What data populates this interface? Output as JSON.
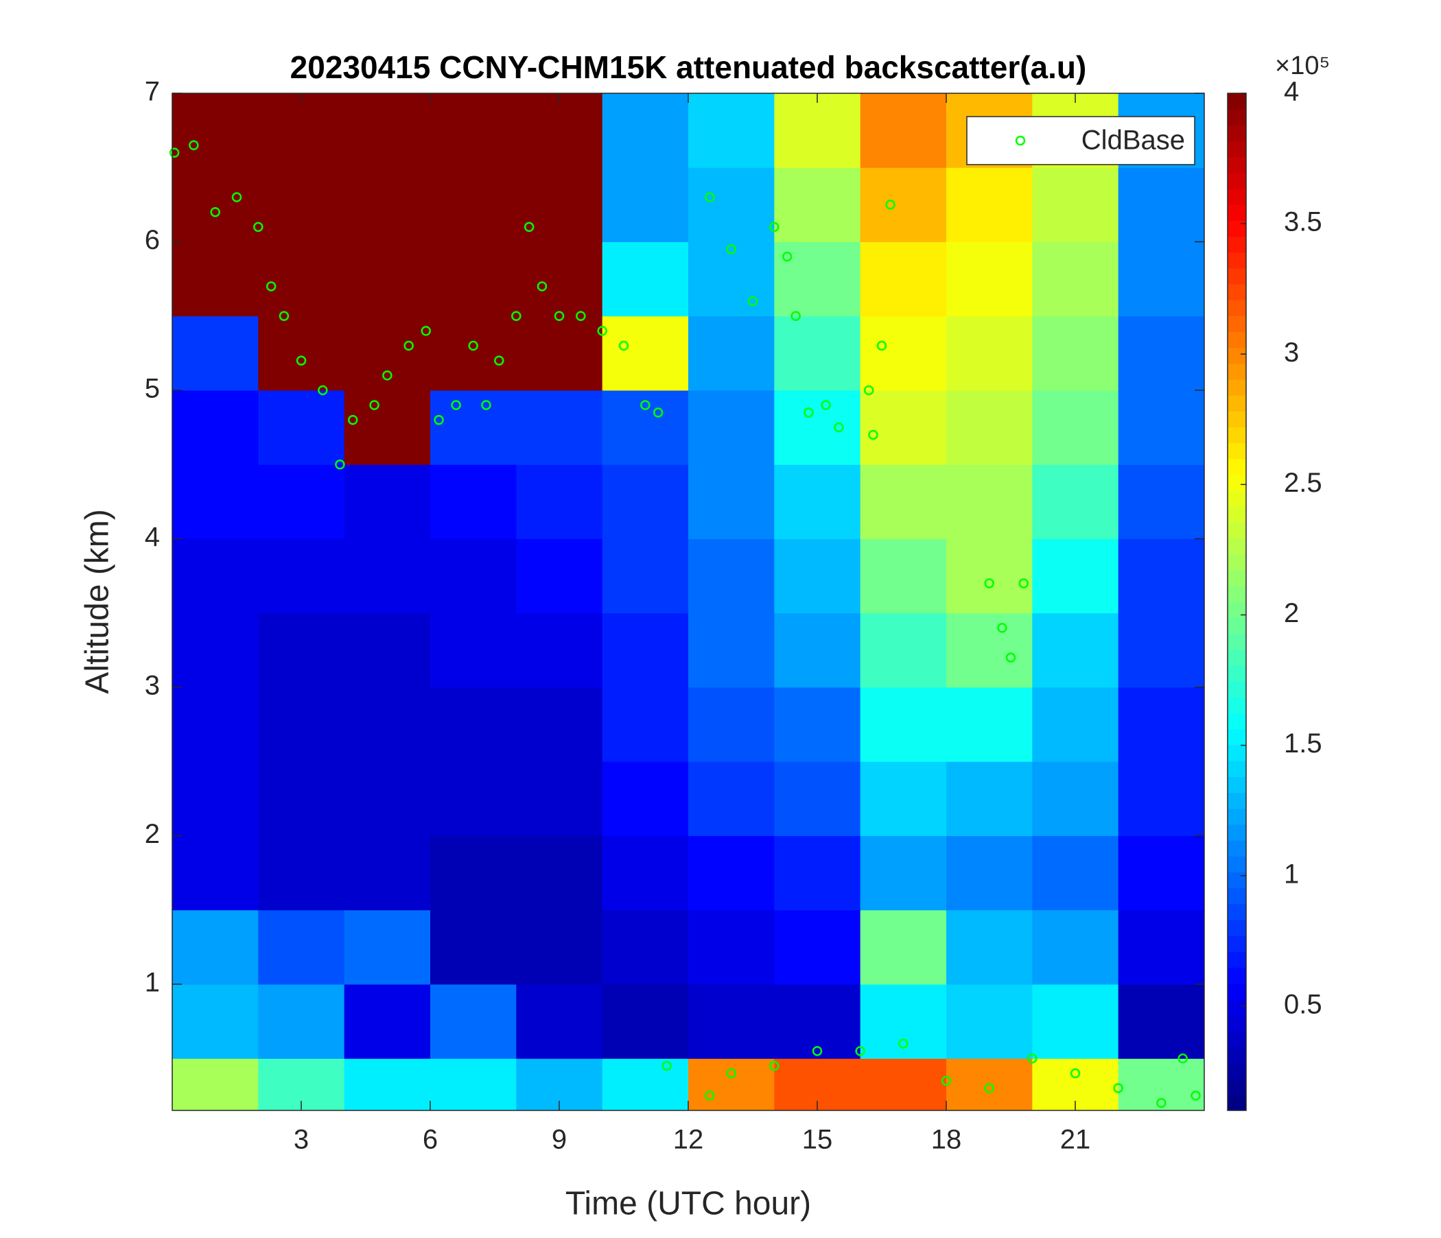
{
  "chart_data": {
    "type": "heatmap",
    "title": "20230415 CCNY-CHM15K attenuated backscatter(a.u)",
    "x_label": "Time (UTC hour)",
    "y_label": "Altitude (km)",
    "xlim": [
      0,
      24
    ],
    "xticks": [
      3,
      6,
      9,
      12,
      15,
      18,
      21
    ],
    "ylim": [
      0.15,
      7
    ],
    "yticks": [
      1,
      2,
      3,
      4,
      5,
      6,
      7
    ],
    "colormap": "jet",
    "clim": [
      0.1,
      4
    ],
    "cticks": [
      0.5,
      1,
      1.5,
      2,
      2.5,
      3,
      3.5,
      4
    ],
    "colorbar_multiplier": "×10⁵",
    "x_bins": [
      0,
      2,
      4,
      6,
      8,
      10,
      12,
      14,
      16,
      18,
      20,
      22,
      24
    ],
    "y_bins": [
      0.15,
      0.5,
      1,
      1.5,
      2,
      2.5,
      3,
      3.5,
      4,
      4.5,
      5,
      5.5,
      6,
      6.5,
      7
    ],
    "z": [
      [
        2.2,
        1.8,
        1.5,
        1.5,
        1.3,
        1.5,
        3.0,
        3.2,
        3.2,
        3.0,
        2.5,
        2.0
      ],
      [
        1.3,
        1.2,
        0.5,
        1.0,
        0.4,
        0.3,
        0.4,
        0.4,
        1.5,
        1.4,
        1.5,
        0.3
      ],
      [
        1.2,
        0.9,
        1.0,
        0.3,
        0.3,
        0.4,
        0.5,
        0.6,
        2.0,
        1.3,
        1.2,
        0.5
      ],
      [
        0.5,
        0.4,
        0.4,
        0.3,
        0.3,
        0.5,
        0.6,
        0.7,
        1.2,
        1.1,
        1.0,
        0.6
      ],
      [
        0.5,
        0.4,
        0.4,
        0.4,
        0.4,
        0.6,
        0.8,
        0.9,
        1.4,
        1.3,
        1.2,
        0.7
      ],
      [
        0.5,
        0.4,
        0.4,
        0.4,
        0.4,
        0.7,
        0.9,
        1.0,
        1.6,
        1.6,
        1.3,
        0.7
      ],
      [
        0.5,
        0.4,
        0.4,
        0.5,
        0.5,
        0.7,
        1.0,
        1.2,
        1.8,
        2.0,
        1.4,
        0.8
      ],
      [
        0.5,
        0.5,
        0.5,
        0.5,
        0.6,
        0.8,
        1.0,
        1.3,
        2.0,
        2.2,
        1.6,
        0.8
      ],
      [
        0.6,
        0.6,
        0.5,
        0.6,
        0.7,
        0.8,
        1.1,
        1.4,
        2.2,
        2.2,
        1.8,
        0.9
      ],
      [
        0.6,
        0.7,
        4,
        0.8,
        0.8,
        0.9,
        1.1,
        1.6,
        2.4,
        2.3,
        2.0,
        1.0
      ],
      [
        0.8,
        4,
        4,
        4,
        4,
        2.5,
        1.2,
        1.8,
        2.5,
        2.4,
        2.1,
        1.0
      ],
      [
        4,
        4,
        4,
        4,
        4,
        1.5,
        1.3,
        2.0,
        2.6,
        2.5,
        2.2,
        1.1
      ],
      [
        4,
        4,
        4,
        4,
        4,
        1.2,
        1.3,
        2.2,
        2.8,
        2.6,
        2.3,
        1.1
      ],
      [
        4,
        4,
        4,
        4,
        4,
        1.2,
        1.4,
        2.4,
        3.0,
        2.8,
        2.4,
        1.2
      ]
    ],
    "legend": "northeast",
    "series": [
      {
        "name": "CldBase",
        "color": "#00ff00",
        "x": [
          0.05,
          0.5,
          1,
          1.5,
          2,
          2.3,
          2.6,
          3,
          3.5,
          3.9,
          4.2,
          4.7,
          5,
          5.5,
          5.9,
          6.2,
          6.6,
          7,
          7.3,
          7.6,
          8,
          8.3,
          8.6,
          9,
          9.5,
          10,
          10.5,
          11,
          11.3,
          12.5,
          13,
          13.5,
          14,
          14.3,
          14.5,
          14.8,
          15.2,
          15.5,
          16.2,
          16.3,
          16.5,
          16.7,
          19,
          19.3,
          19.5,
          19.8,
          11.5,
          12.5,
          13,
          14,
          15,
          16,
          17,
          18,
          19,
          20,
          21,
          22,
          23,
          23.5,
          23.8
        ],
        "y": [
          6.6,
          6.65,
          6.2,
          6.3,
          6.1,
          5.7,
          5.5,
          5.2,
          5.0,
          4.5,
          4.8,
          4.9,
          5.1,
          5.3,
          5.4,
          4.8,
          4.9,
          5.3,
          4.9,
          5.2,
          5.5,
          6.1,
          5.7,
          5.5,
          5.5,
          5.4,
          5.3,
          4.9,
          4.85,
          6.3,
          5.95,
          5.6,
          6.1,
          5.9,
          5.5,
          4.85,
          4.9,
          4.75,
          5.0,
          4.7,
          5.3,
          6.25,
          3.7,
          3.4,
          3.2,
          3.7,
          0.45,
          0.25,
          0.4,
          0.45,
          0.55,
          0.55,
          0.6,
          0.35,
          0.3,
          0.5,
          0.4,
          0.3,
          0.2,
          0.5,
          0.25
        ]
      }
    ]
  }
}
